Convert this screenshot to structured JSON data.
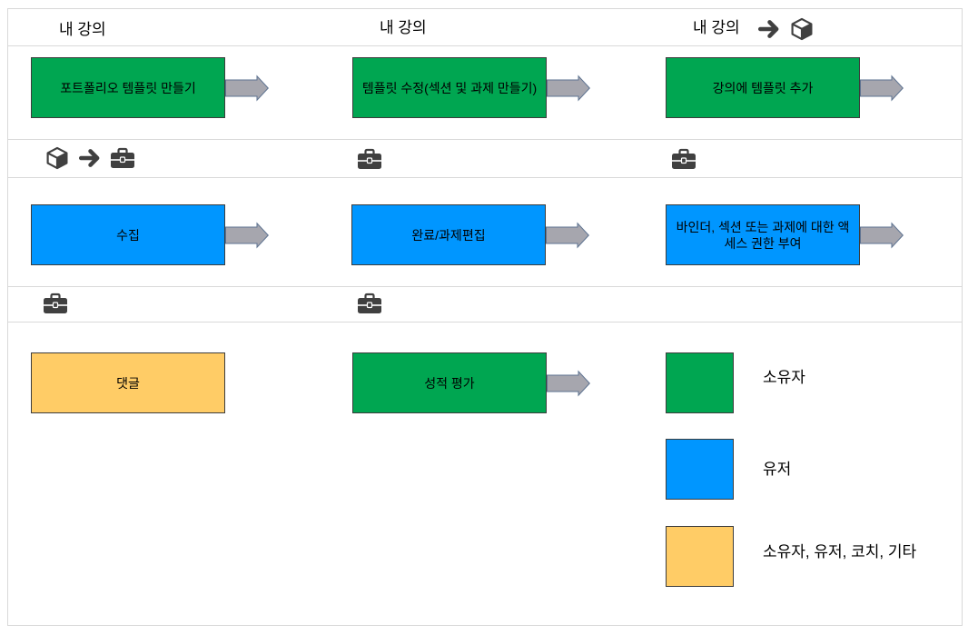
{
  "colors": {
    "grid_line": "#D9D9D9",
    "box_border": "#3C3C3C",
    "arrow_fill": "#A6A6AE",
    "arrow_stroke": "#5E7391",
    "icon": "#404040"
  },
  "header": {
    "col1": {
      "title": "내 강의"
    },
    "col2": {
      "title": "내 강의"
    },
    "col3": {
      "title": "내 강의",
      "icons": [
        "arrow-right-icon",
        "cube-icon"
      ]
    }
  },
  "stage1": {
    "col1": {
      "label": "포트폴리오 템플릿 만들기",
      "color": "#00A651",
      "arrow": true
    },
    "col2": {
      "label": "템플릿 수정(섹션 및 과제 만들기)",
      "color": "#00A651",
      "arrow": true
    },
    "col3": {
      "label": "강의에 템플릿 추가",
      "color": "#00A651",
      "arrow": true
    }
  },
  "stage1_icons": {
    "col1": [
      "cube-icon",
      "arrow-right-icon",
      "briefcase-icon"
    ],
    "col2": [
      "briefcase-icon"
    ],
    "col3": [
      "briefcase-icon"
    ]
  },
  "stage2": {
    "col1": {
      "label": "수집",
      "color": "#0096FF",
      "arrow": true
    },
    "col2": {
      "label": "완료/과제편집",
      "color": "#0096FF",
      "arrow": true
    },
    "col3": {
      "label": "바인더, 섹션 또는 과제에 대한 액세스 권한 부여",
      "color": "#0096FF",
      "arrow": true
    }
  },
  "stage2_icons": {
    "col1": [
      "briefcase-icon"
    ],
    "col2": [
      "briefcase-icon"
    ]
  },
  "stage3": {
    "col1": {
      "label": "댓글",
      "color": "#FFCC66",
      "arrow": false
    },
    "col2": {
      "label": "성적 평가",
      "color": "#00A651",
      "arrow": true
    }
  },
  "legend": [
    {
      "label": "소유자",
      "color": "#00A651"
    },
    {
      "label": "유저",
      "color": "#0096FF"
    },
    {
      "label": "소유자, 유저, 코치, 기타",
      "color": "#FFCC66"
    }
  ]
}
